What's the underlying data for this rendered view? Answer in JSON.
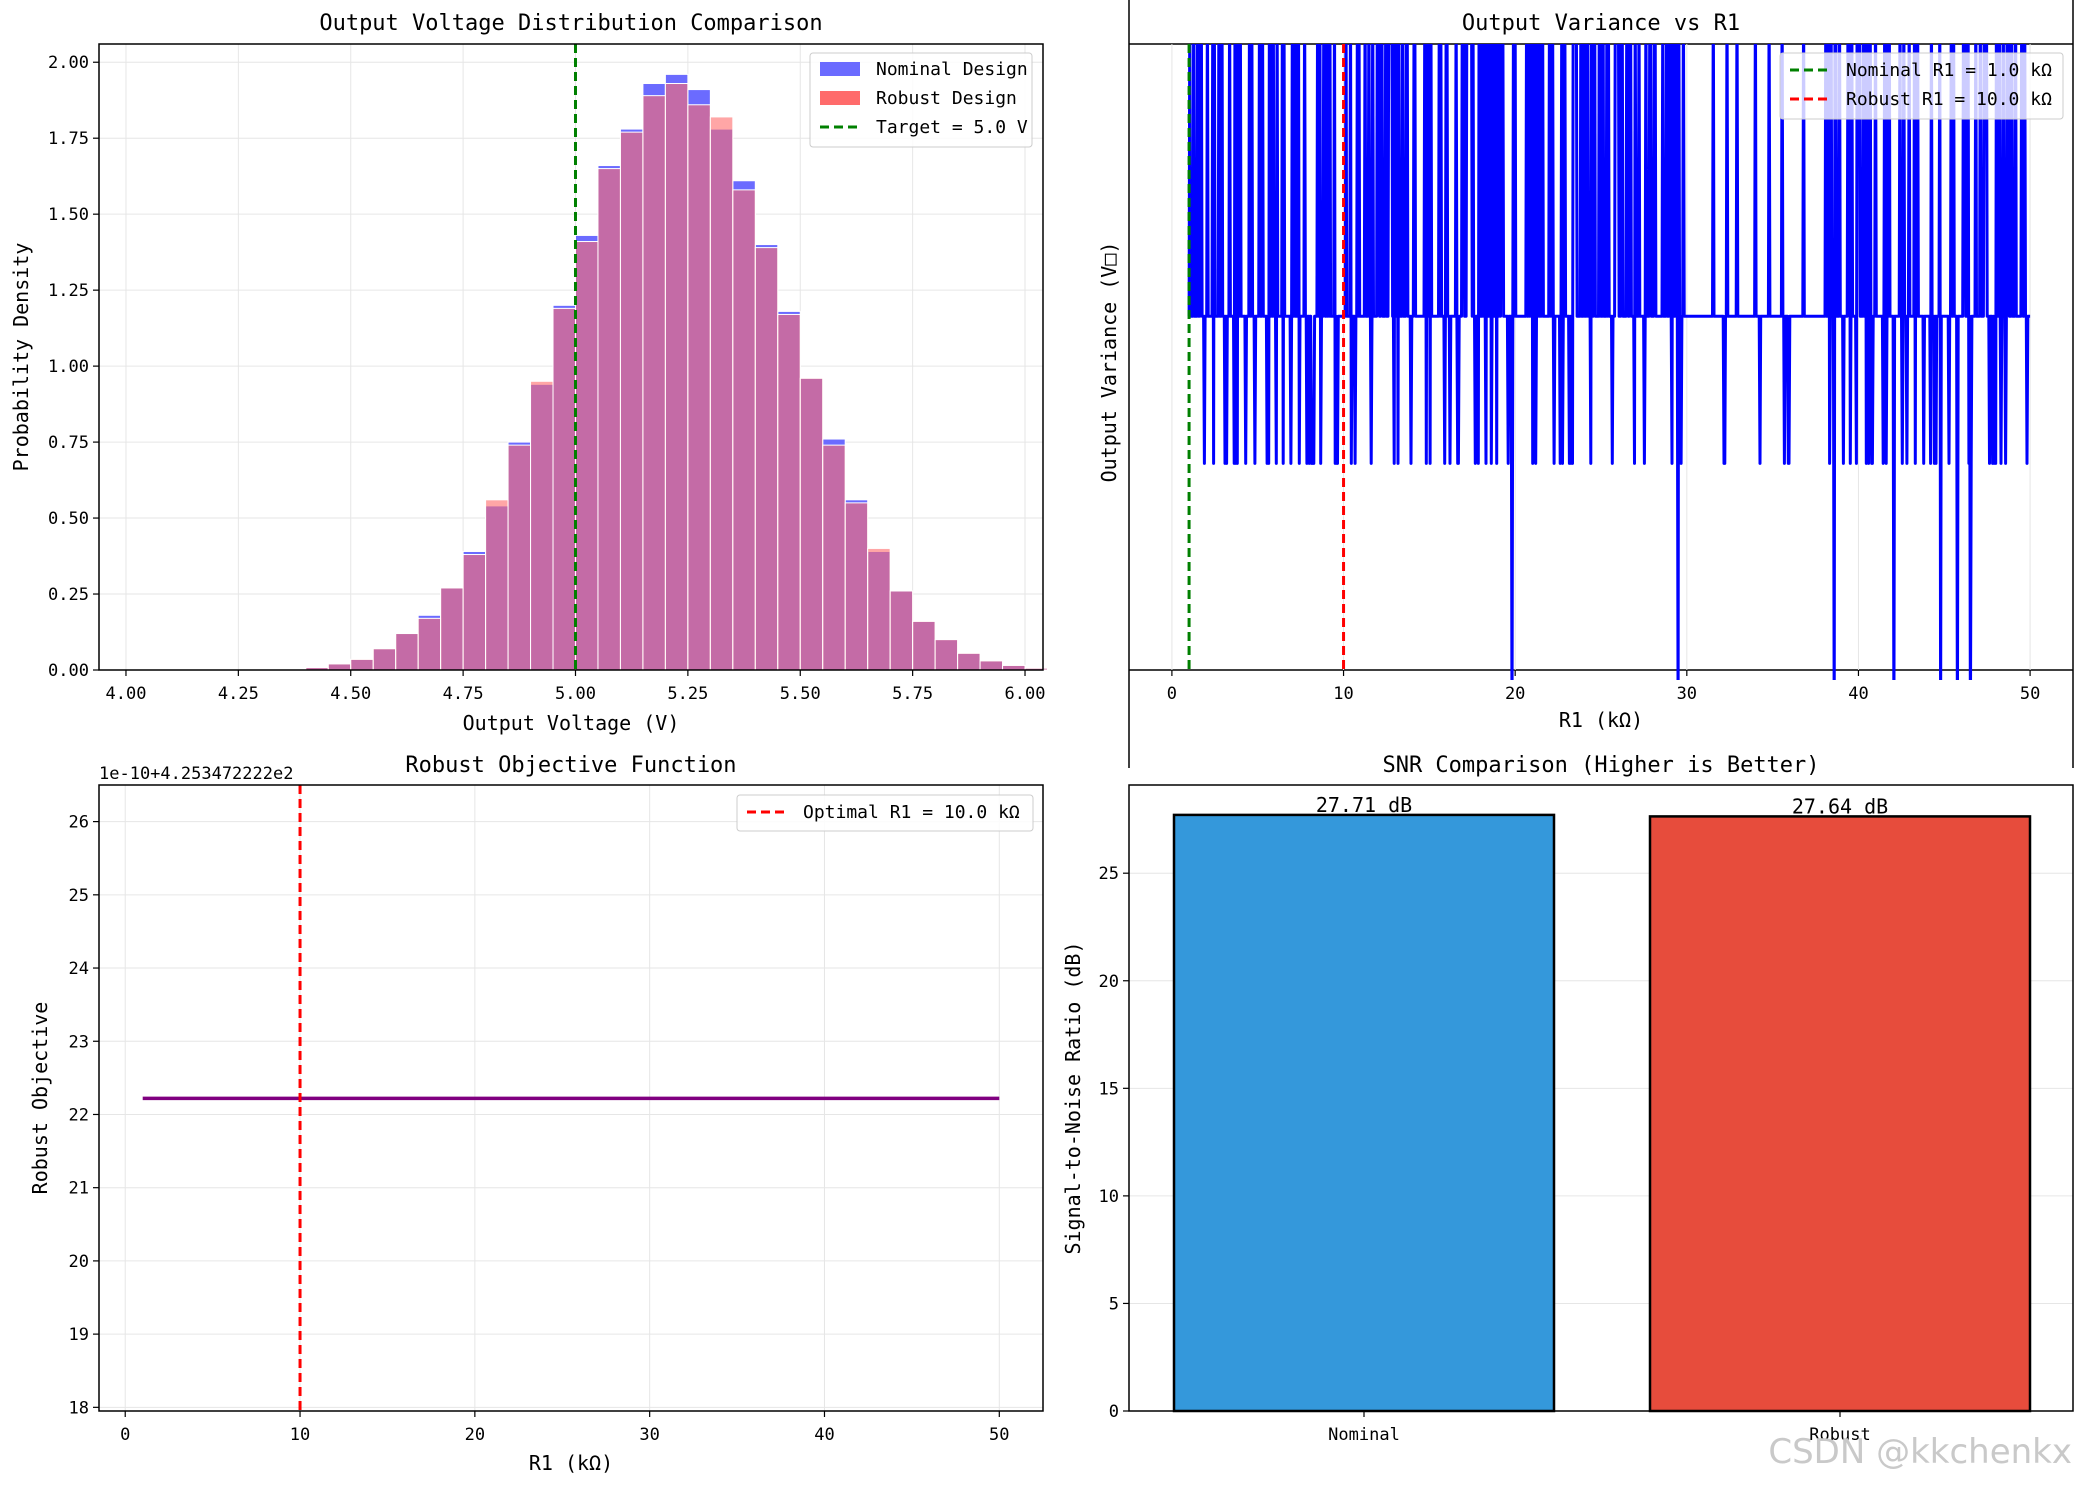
{
  "chart_data": [
    {
      "type": "bar",
      "title": "Output Voltage Distribution Comparison",
      "xlabel": "Output Voltage (V)",
      "ylabel": "Probability Density",
      "xlim": [
        3.94,
        6.04
      ],
      "ylim": [
        0,
        2.06
      ],
      "xticks": [
        "4.00",
        "4.25",
        "4.50",
        "4.75",
        "5.00",
        "5.25",
        "5.50",
        "5.75",
        "6.00"
      ],
      "yticks": [
        "0.00",
        "0.25",
        "0.50",
        "0.75",
        "1.00",
        "1.25",
        "1.50",
        "1.75",
        "2.00"
      ],
      "grid": true,
      "legend_position": "top-right",
      "legend": [
        "Nominal Design",
        "Robust Design",
        "Target = 5.0 V"
      ],
      "bin_start": 4.0,
      "bin_width": 0.05,
      "series": [
        {
          "name": "Nominal Design",
          "color": "#6b6bff",
          "values": [
            0,
            0,
            0,
            0,
            0,
            0,
            0,
            0.002,
            0.008,
            0.02,
            0.035,
            0.07,
            0.12,
            0.18,
            0.27,
            0.39,
            0.54,
            0.75,
            0.94,
            1.2,
            1.43,
            1.66,
            1.78,
            1.93,
            1.96,
            1.91,
            1.78,
            1.61,
            1.4,
            1.18,
            0.96,
            0.76,
            0.56,
            0.39,
            0.26,
            0.16,
            0.1,
            0.055,
            0.03,
            0.015,
            0.006,
            0.002,
            0,
            0
          ]
        },
        {
          "name": "Robust Design",
          "color": "#ff6b6b",
          "values": [
            0,
            0,
            0,
            0,
            0,
            0,
            0,
            0.002,
            0.008,
            0.02,
            0.035,
            0.07,
            0.12,
            0.17,
            0.27,
            0.38,
            0.56,
            0.74,
            0.95,
            1.19,
            1.41,
            1.65,
            1.77,
            1.89,
            1.93,
            1.86,
            1.82,
            1.58,
            1.39,
            1.17,
            0.96,
            0.74,
            0.55,
            0.4,
            0.26,
            0.16,
            0.1,
            0.055,
            0.03,
            0.015,
            0.006,
            0.002,
            0,
            0
          ]
        }
      ],
      "vline": {
        "x": 5.0,
        "label": "Target = 5.0 V",
        "color": "#008000"
      }
    },
    {
      "type": "line",
      "title": "Output Variance vs R1",
      "xlabel": "R1 (kΩ)",
      "ylabel": "Output Variance (V□)",
      "xlim": [
        -2.5,
        52.5
      ],
      "xticks": [
        "0",
        "10",
        "20",
        "30",
        "40",
        "50"
      ],
      "grid": true,
      "legend_position": "top-right",
      "legend": [
        "Nominal R1 = 1.0 kΩ",
        "Robust R1 = 10.0 kΩ"
      ],
      "series_color": "#0000ff",
      "levels": [
        0.33,
        0.565,
        0.795
      ],
      "x_start": 1.0,
      "x_end": 50.0,
      "vlines": [
        {
          "x": 1.0,
          "label": "Nominal R1 = 1.0 kΩ",
          "color": "#008000"
        },
        {
          "x": 10.0,
          "label": "Robust R1 = 10.0 kΩ",
          "color": "#ff0000"
        }
      ],
      "note": "Quantized noise-level line switching among three levels with spikes above and below the axes."
    },
    {
      "type": "line",
      "title": "Robust Objective Function",
      "xlabel": "R1 (kΩ)",
      "ylabel": "Robust Objective",
      "offset_text": "1e-10+4.253472222e2",
      "xlim": [
        -1.5,
        52.5
      ],
      "ylim": [
        17.95,
        26.5
      ],
      "xticks": [
        "0",
        "10",
        "20",
        "30",
        "40",
        "50"
      ],
      "yticks": [
        "18",
        "19",
        "20",
        "21",
        "22",
        "23",
        "24",
        "25",
        "26"
      ],
      "grid": true,
      "legend_position": "top-right",
      "legend": [
        "Optimal R1 = 10.0 kΩ"
      ],
      "series": [
        {
          "name": "Robust Objective",
          "color": "#800080",
          "x": [
            1,
            50
          ],
          "y": [
            22.22,
            22.22
          ]
        }
      ],
      "vline": {
        "x": 10.0,
        "label": "Optimal R1 = 10.0 kΩ",
        "color": "#ff0000"
      }
    },
    {
      "type": "bar",
      "title": "SNR Comparison (Higher is Better)",
      "xlabel": "",
      "ylabel": "Signal-to-Noise Ratio (dB)",
      "ylim": [
        0,
        29.1
      ],
      "yticks": [
        "0",
        "5",
        "10",
        "15",
        "20",
        "25"
      ],
      "grid": true,
      "categories": [
        "Nominal",
        "Robust"
      ],
      "values": [
        27.71,
        27.64
      ],
      "value_labels": [
        "27.71 dB",
        "27.64 dB"
      ],
      "colors": [
        "#3498db",
        "#e74c3c"
      ]
    }
  ],
  "watermark": "CSDN @kkchenkx"
}
